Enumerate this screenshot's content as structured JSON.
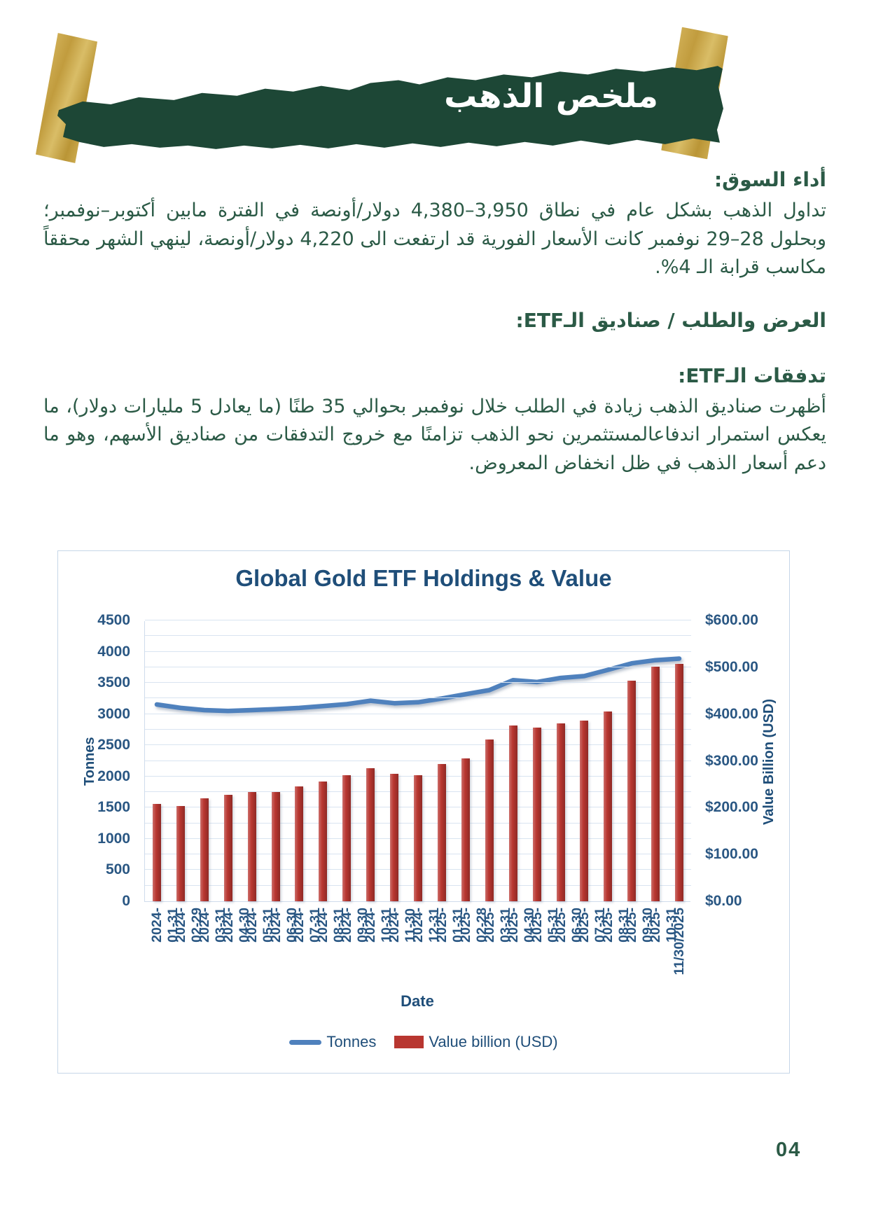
{
  "page": {
    "number": "04"
  },
  "header": {
    "title": "ملخص الذهب"
  },
  "sections": [
    {
      "heading": "أداء السوق:",
      "body": "تداول الذهب بشكل عام في نطاق 3,950–4,380 دولار/أونصة في الفترة مابين أكتوبر–نوفمبر؛ وبحلول 28–29 نوفمبر كانت الأسعار الفورية قد ارتفعت الى 4,220 دولار/أونصة، لينهي الشهر محققاً مكاسب قرابة الـ 4%."
    },
    {
      "heading": "العرض والطلب / صناديق الـETF:",
      "body": ""
    },
    {
      "heading": "تدفقات الـETF:",
      "body": "أظهرت صناديق الذهب زيادة في الطلب خلال نوفمبر بحوالي 35 طنًا (ما يعادل 5 مليارات دولار)، ما يعكس استمرار اندفاعالمستثمرين نحو الذهب تزامنًا مع خروج التدفقات من صناديق الأسهم، وهو ما دعم أسعار الذهب في ظل انخفاض المعروض."
    }
  ],
  "colors": {
    "banner_green": "#1d4736",
    "tape_gold": "#c4a044",
    "text_green": "#2b5a46",
    "chart_blue": "#1f4e79",
    "axis_label_blue": "#2a5783",
    "grid_blue": "#d9e4f1",
    "card_border": "#c6d6e8"
  },
  "chart_data": {
    "type": "combo",
    "title": "Global Gold ETF Holdings & Value",
    "categories": [
      "2024-01-31",
      "2024-02-29",
      "2024-03-31",
      "2024-04-30",
      "2024-05-31",
      "2024-06-30",
      "2024-07-31",
      "2024-08-31",
      "2024-09-30",
      "2024-10-31",
      "2024-11-30",
      "2024-12-31",
      "2025-01-31",
      "2025-02-28",
      "2025-03-31",
      "2025-04-30",
      "2025-05-31",
      "2025-06-30",
      "2025-07-31",
      "2025-08-31",
      "2025-09-30",
      "2025-10-31",
      "11/30/2025"
    ],
    "series": [
      {
        "name": "Tonnes",
        "type": "line",
        "axis": "left",
        "color": "#4f81bd",
        "values": [
          3165,
          3110,
          3075,
          3060,
          3075,
          3090,
          3110,
          3140,
          3170,
          3225,
          3185,
          3200,
          3260,
          3330,
          3395,
          3555,
          3525,
          3590,
          3620,
          3720,
          3825,
          3875,
          3900
        ]
      },
      {
        "name": "Value billion (USD)",
        "type": "bar",
        "axis": "right",
        "color": "#b83630",
        "values": [
          208,
          203,
          220,
          227,
          234,
          233,
          246,
          256,
          269,
          284,
          273,
          269,
          293,
          306,
          346,
          376,
          371,
          380,
          386,
          406,
          472,
          501,
          507
        ]
      }
    ],
    "x_axis": {
      "title": "Date"
    },
    "left_axis": {
      "title": "Tonnes",
      "min": 0,
      "max": 4500,
      "grid_step": 250,
      "tick_labels": [
        "4500",
        "4000",
        "3500",
        "3000",
        "2500",
        "2000",
        "1500",
        "1000",
        "500",
        "0"
      ]
    },
    "right_axis": {
      "title": "Value Billion (USD)",
      "min": 0,
      "max": 600,
      "tick_labels": [
        "$600.00",
        "$500.00",
        "$400.00",
        "$300.00",
        "$200.00",
        "$100.00",
        "$0.00"
      ]
    },
    "legend": {
      "position": "bottom"
    },
    "grid": true
  }
}
